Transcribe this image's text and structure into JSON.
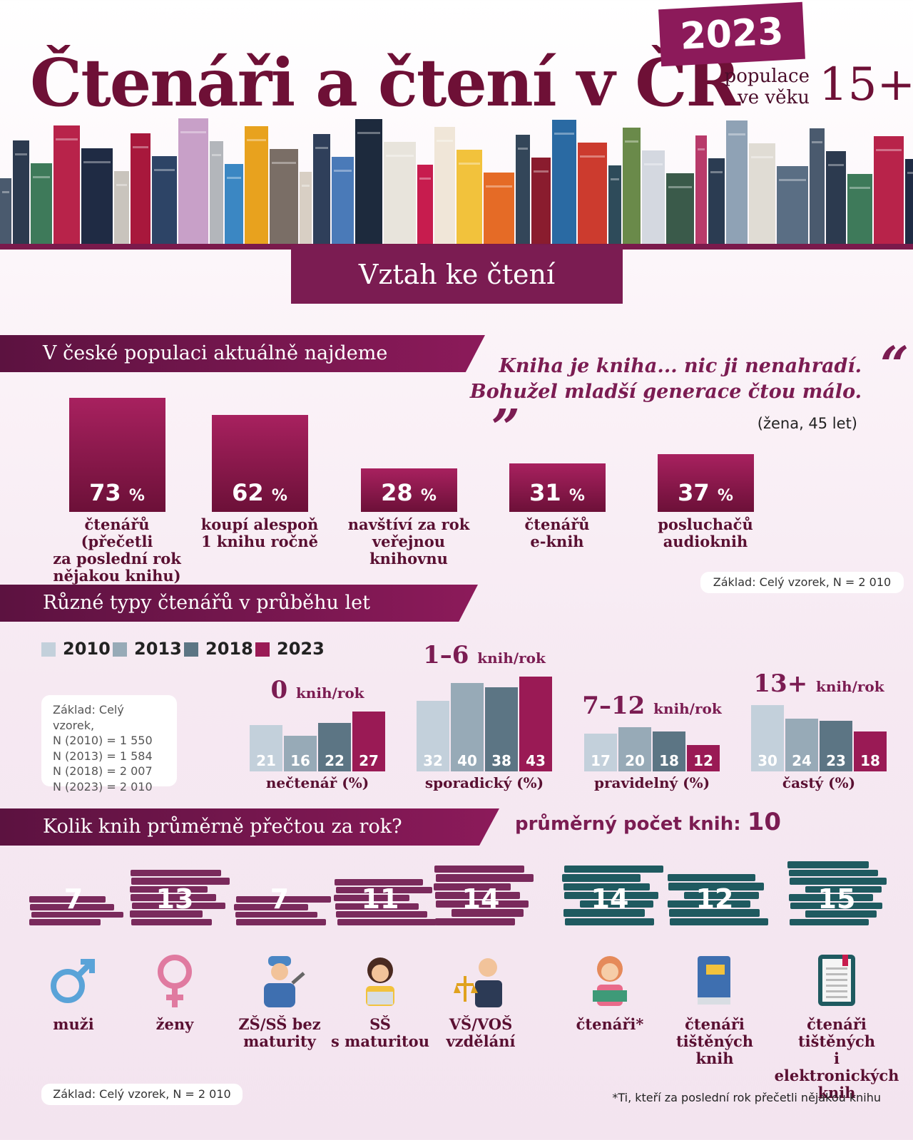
{
  "header": {
    "title": "Čtenáři a čtení v ČR",
    "year": "2023",
    "population_line1": "populace",
    "population_line2": "ve věku",
    "age": "15+"
  },
  "section_title": "Vztah ke čtení",
  "section1": {
    "heading": "V české populaci aktuálně najdeme",
    "quote_line1": "Kniha je kniha... nic ji nenahradí.",
    "quote_line2": "Bohužel mladší generace čtou málo.",
    "quote_author": "(žena, 45 let)",
    "base_note": "Základ: Celý vzorek, N = 2 010"
  },
  "section2": {
    "heading": "Různé typy čtenářů v průběhu let",
    "base_note_lines": [
      "Základ: Celý vzorek,",
      "N (2010) = 1 550",
      "N (2013) = 1 584",
      "N (2018) = 2 007",
      "N (2023) = 2 010"
    ]
  },
  "section3": {
    "heading": "Kolik knih průměrně přečtou za rok?",
    "avg_label": "průměrný počet knih:",
    "avg_value": "10",
    "base_note": "Základ: Celý vzorek, N = 2 010",
    "footnote": "*Ti, kteří za poslední rok přečetli nějakou knihu"
  },
  "chart_data": [
    {
      "type": "bar",
      "categories": [
        "čtenářů (přečetli za poslední rok nějakou knihu)",
        "koupí alespoň 1 knihu ročně",
        "navštíví za rok veřejnou knihovnu",
        "čtenářů e-knih",
        "posluchačů audioknih"
      ],
      "label_lines": [
        [
          "čtenářů (přečetli",
          "za poslední rok",
          "nějakou knihu)"
        ],
        [
          "koupí alespoň",
          "1 knihu ročně"
        ],
        [
          "navštíví za rok",
          "veřejnou",
          "knihovnu"
        ],
        [
          "čtenářů",
          "e-knih"
        ],
        [
          "posluchačů",
          "audioknih"
        ]
      ],
      "values": [
        73,
        62,
        28,
        31,
        37
      ],
      "unit": "%"
    },
    {
      "type": "bar",
      "years": [
        "2010",
        "2013",
        "2018",
        "2023"
      ],
      "year_colors": [
        "#c3d0db",
        "#97aab7",
        "#5c7584",
        "#9a1a55"
      ],
      "groups": [
        {
          "title_num": "0",
          "title_unit": "knih/rok",
          "label": "nečtenář (%)",
          "values": [
            21,
            16,
            22,
            27
          ]
        },
        {
          "title_num": "1–6",
          "title_unit": "knih/rok",
          "label": "sporadický (%)",
          "values": [
            32,
            40,
            38,
            43
          ]
        },
        {
          "title_num": "7–12",
          "title_unit": "knih/rok",
          "label": "pravidelný (%)",
          "values": [
            17,
            20,
            18,
            12
          ]
        },
        {
          "title_num": "13+",
          "title_unit": "knih/rok",
          "label": "častý (%)",
          "values": [
            30,
            24,
            23,
            18
          ]
        }
      ]
    },
    {
      "type": "bar",
      "categories": [
        "muži",
        "ženy",
        "ZŠ/SŠ bez maturity",
        "SŠ s maturitou",
        "VŠ/VOŠ vzdělání",
        "čtenáři*",
        "čtenáři tištěných knih",
        "čtenáři tištěných i elektronických knih"
      ],
      "label_lines": [
        [
          "muži"
        ],
        [
          "ženy"
        ],
        [
          "ZŠ/SŠ bez",
          "maturity"
        ],
        [
          "SŠ",
          "s maturitou"
        ],
        [
          "VŠ/VOŠ",
          "vzdělání"
        ],
        [
          "čtenáři*"
        ],
        [
          "čtenáři",
          "tištěných",
          "knih"
        ],
        [
          "čtenáři tištěných",
          "i elektronických",
          "knih"
        ]
      ],
      "values": [
        7,
        13,
        7,
        11,
        14,
        14,
        12,
        15
      ],
      "icons": [
        "male-symbol-icon",
        "female-symbol-icon",
        "worker-icon",
        "woman-laptop-icon",
        "lawyer-icon",
        "girl-reading-icon",
        "printed-book-icon",
        "ebook-icon"
      ],
      "colors": {
        "purple": "#7a2a5c",
        "teal": "#1f5a60"
      }
    }
  ]
}
